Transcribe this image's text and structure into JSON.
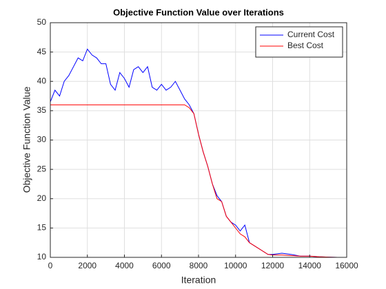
{
  "chart_data": {
    "type": "line",
    "title": "Objective Function Value over Iterations",
    "xlabel": "Iteration",
    "ylabel": "Objective Function Value",
    "x": [
      0,
      250,
      500,
      750,
      1000,
      1250,
      1500,
      1750,
      2000,
      2250,
      2500,
      2750,
      3000,
      3250,
      3500,
      3750,
      4000,
      4250,
      4500,
      4750,
      5000,
      5250,
      5500,
      5750,
      6000,
      6250,
      6500,
      6750,
      7000,
      7250,
      7500,
      7750,
      8000,
      8250,
      8500,
      8750,
      9000,
      9250,
      9500,
      9750,
      10000,
      10250,
      10500,
      10750,
      11000,
      11250,
      11500,
      11750,
      12000,
      12500,
      13000,
      13500,
      14000,
      14500,
      15000,
      15500
    ],
    "series": [
      {
        "name": "Current Cost",
        "color": "#0000ff",
        "values": [
          36.5,
          38.5,
          37.5,
          40,
          41,
          42.5,
          44,
          43.5,
          45.5,
          44.5,
          44,
          43,
          43,
          39.5,
          38.5,
          41.5,
          40.5,
          39,
          42,
          42.5,
          41.5,
          42.5,
          39,
          38.5,
          39.5,
          38.5,
          39,
          40,
          38.5,
          37,
          36,
          34.5,
          31,
          28,
          25.5,
          22.5,
          20.5,
          19.5,
          17,
          16,
          15.5,
          14.5,
          15.5,
          12.5,
          12,
          11.5,
          11,
          10.5,
          10.5,
          10.7,
          10.5,
          10.2,
          10.2,
          10.1,
          10.05,
          10
        ]
      },
      {
        "name": "Best Cost",
        "color": "#ff0000",
        "values": [
          36,
          36,
          36,
          36,
          36,
          36,
          36,
          36,
          36,
          36,
          36,
          36,
          36,
          36,
          36,
          36,
          36,
          36,
          36,
          36,
          36,
          36,
          36,
          36,
          36,
          36,
          36,
          36,
          36,
          36,
          35.5,
          34.5,
          31,
          28,
          25.5,
          22.5,
          20,
          19.5,
          17,
          16,
          15,
          14,
          13.5,
          12.5,
          12,
          11.5,
          11,
          10.5,
          10.4,
          10.4,
          10.3,
          10.2,
          10.2,
          10.1,
          10.05,
          10
        ]
      }
    ],
    "xlim": [
      0,
      16000
    ],
    "xticks": [
      0,
      2000,
      4000,
      6000,
      8000,
      10000,
      12000,
      14000,
      16000
    ],
    "ylim": [
      10,
      50
    ],
    "yticks": [
      10,
      15,
      20,
      25,
      30,
      35,
      40,
      45,
      50
    ],
    "grid": true,
    "legend": "top-right"
  }
}
